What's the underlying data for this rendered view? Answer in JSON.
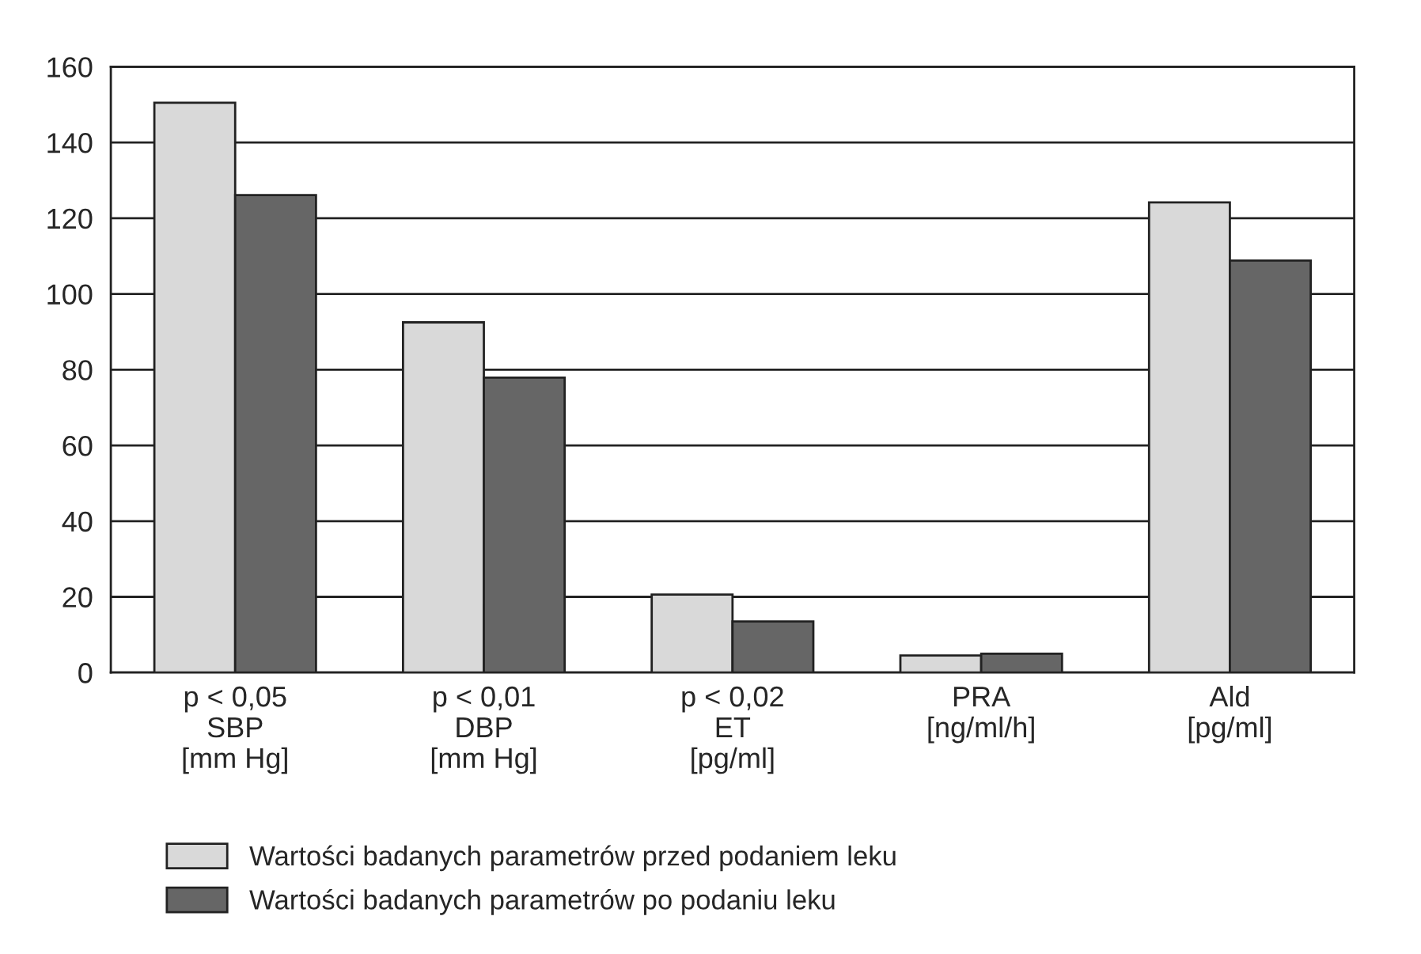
{
  "chart_data": {
    "type": "bar",
    "categories": [
      "p < 0,05\nSBP\n[mm Hg]",
      "p < 0,01\nDBP\n[mm Hg]",
      "p < 0,02\nET\n[pg/ml]",
      "PRA\n[ng/ml/h]",
      "Ald\n[pg/ml]"
    ],
    "series": [
      {
        "name": "Wartości badanych parametrów przed podaniem leku",
        "color": "#d9d9d9",
        "values": [
          150.5,
          92.5,
          20.6,
          4.5,
          124.2
        ]
      },
      {
        "name": "Wartości badanych parametrów po podaniu leku",
        "color": "#666666",
        "values": [
          126.1,
          77.9,
          13.5,
          5.0,
          108.8
        ]
      }
    ],
    "ylim": [
      0,
      160
    ],
    "yticks": [
      0,
      20,
      40,
      60,
      80,
      100,
      120,
      140,
      160
    ],
    "grid": "y",
    "legend": "bottom left"
  }
}
